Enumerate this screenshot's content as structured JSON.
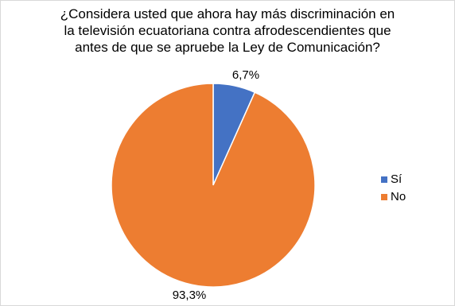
{
  "chart_data": {
    "type": "pie",
    "title_lines": [
      "¿Considera usted que ahora hay más discriminación en",
      "la televisión ecuatoriana contra afrodescendientes que",
      "antes de que se apruebe la Ley de Comunicación?"
    ],
    "slices": [
      {
        "name": "Sí",
        "value": 6.7,
        "label": "6,7%",
        "color": "#4472C4"
      },
      {
        "name": "No",
        "value": 93.3,
        "label": "93,3%",
        "color": "#ED7D31"
      }
    ],
    "legend_position": "right"
  }
}
